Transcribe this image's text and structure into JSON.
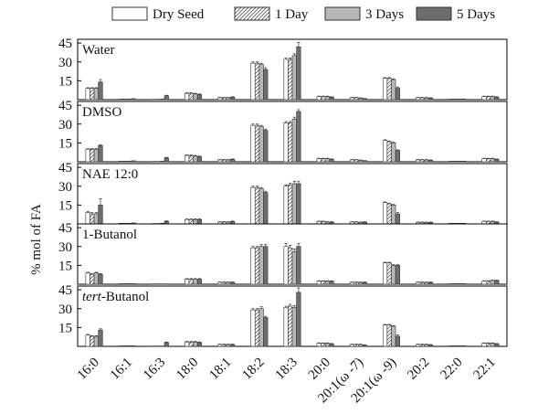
{
  "chart_data": {
    "type": "bar",
    "ylabel": "% mol of FA",
    "yticks": [
      15,
      30,
      45
    ],
    "ylim": [
      0,
      48
    ],
    "categories": [
      "16:0",
      "16:1",
      "16:3",
      "18:0",
      "18:1",
      "18:2",
      "18:3",
      "20:0",
      "20:1(ω -7)",
      "20:1(ω -9)",
      "20:2",
      "22:0",
      "22:1"
    ],
    "legend": [
      {
        "name": "Dry Seed",
        "fill": "#ffffff",
        "hatch": false
      },
      {
        "name": "1 Day",
        "fill": "#ffffff",
        "hatch": true
      },
      {
        "name": "3 Days",
        "fill": "#b8b8b8",
        "hatch": false
      },
      {
        "name": "5 Days",
        "fill": "#6e6e6e",
        "hatch": false
      }
    ],
    "panels": [
      {
        "label": "Water",
        "label_italic": "",
        "values": [
          [
            9,
            9,
            9,
            14
          ],
          [
            0.5,
            0.5,
            0.5,
            0.8
          ],
          [
            0.3,
            0.3,
            0.5,
            3
          ],
          [
            5,
            5,
            4.5,
            4
          ],
          [
            1.5,
            1.5,
            1.5,
            2
          ],
          [
            29,
            29,
            28,
            24
          ],
          [
            32,
            32,
            35,
            42
          ],
          [
            2.5,
            2.5,
            2.5,
            2
          ],
          [
            1.5,
            1.5,
            1.2,
            1
          ],
          [
            17,
            17,
            16,
            9
          ],
          [
            1.5,
            1.5,
            1.5,
            1.2
          ],
          [
            0.5,
            0.5,
            0.5,
            0.5
          ],
          [
            2.5,
            2.5,
            2.5,
            2
          ]
        ],
        "errors": [
          [
            0.5,
            0.5,
            0.5,
            2
          ],
          [
            0.2,
            0.2,
            0.2,
            0.2
          ],
          [
            0.1,
            0.1,
            0.2,
            0.5
          ],
          [
            0.5,
            0.5,
            0.5,
            0.5
          ],
          [
            0.3,
            0.3,
            0.3,
            0.3
          ],
          [
            1,
            1,
            1,
            1.5
          ],
          [
            1,
            1,
            1.5,
            3.5
          ],
          [
            0.3,
            0.3,
            0.3,
            0.3
          ],
          [
            0.3,
            0.3,
            0.3,
            0.2
          ],
          [
            0.5,
            0.5,
            0.5,
            1
          ],
          [
            0.3,
            0.3,
            0.3,
            0.3
          ],
          [
            0.1,
            0.1,
            0.1,
            0.1
          ],
          [
            0.3,
            0.3,
            0.3,
            0.3
          ]
        ]
      },
      {
        "label": "DMSO",
        "label_italic": "",
        "values": [
          [
            10,
            10,
            10,
            13
          ],
          [
            0.5,
            0.5,
            0.5,
            0.8
          ],
          [
            0.3,
            0.3,
            0.5,
            3
          ],
          [
            5,
            5,
            4.5,
            4
          ],
          [
            1.5,
            1.5,
            1.5,
            2
          ],
          [
            29,
            29,
            28,
            25
          ],
          [
            31,
            31,
            34,
            40
          ],
          [
            2.5,
            2.5,
            2.5,
            2
          ],
          [
            1.5,
            1.5,
            1.2,
            1
          ],
          [
            17,
            16,
            15,
            9
          ],
          [
            1.5,
            1.5,
            1.5,
            1.2
          ],
          [
            0.5,
            0.5,
            0.5,
            0.5
          ],
          [
            2.5,
            2.5,
            2.5,
            2
          ]
        ],
        "errors": [
          [
            0.5,
            0.5,
            0.5,
            0.5
          ],
          [
            0.2,
            0.2,
            0.2,
            0.2
          ],
          [
            0.1,
            0.1,
            0.2,
            0.5
          ],
          [
            0.5,
            0.5,
            0.5,
            0.5
          ],
          [
            0.3,
            0.3,
            0.3,
            0.3
          ],
          [
            1,
            1,
            1,
            1
          ],
          [
            1,
            1,
            1.5,
            1.5
          ],
          [
            0.3,
            0.3,
            0.3,
            0.3
          ],
          [
            0.3,
            0.3,
            0.3,
            0.2
          ],
          [
            0.5,
            0.5,
            0.5,
            0.5
          ],
          [
            0.3,
            0.3,
            0.3,
            0.3
          ],
          [
            0.1,
            0.1,
            0.1,
            0.1
          ],
          [
            0.3,
            0.3,
            0.3,
            0.3
          ]
        ]
      },
      {
        "label": "NAE 12:0",
        "label_italic": "",
        "values": [
          [
            9,
            8,
            8,
            15
          ],
          [
            0.5,
            0.5,
            0.5,
            0.8
          ],
          [
            0.3,
            0.3,
            0.5,
            2
          ],
          [
            3.5,
            3.5,
            3.5,
            3.5
          ],
          [
            1.5,
            1.5,
            1.5,
            2
          ],
          [
            29,
            29,
            28,
            25
          ],
          [
            30,
            31,
            32,
            32
          ],
          [
            2,
            2,
            1.5,
            1.5
          ],
          [
            1.5,
            1.5,
            1.2,
            1.5
          ],
          [
            17,
            16,
            15,
            8
          ],
          [
            1.2,
            1.2,
            1.2,
            1.2
          ],
          [
            0.5,
            0.5,
            0.5,
            0.5
          ],
          [
            2,
            2,
            2,
            1.5
          ]
        ],
        "errors": [
          [
            1,
            1,
            1,
            5
          ],
          [
            0.2,
            0.2,
            0.2,
            0.2
          ],
          [
            0.1,
            0.1,
            0.2,
            0.5
          ],
          [
            0.5,
            0.5,
            0.5,
            0.5
          ],
          [
            0.3,
            0.3,
            0.3,
            0.3
          ],
          [
            1,
            1,
            1,
            1
          ],
          [
            1,
            1.5,
            2,
            2
          ],
          [
            0.3,
            0.3,
            0.3,
            0.3
          ],
          [
            0.3,
            0.3,
            0.3,
            0.3
          ],
          [
            0.5,
            0.5,
            0.5,
            1
          ],
          [
            0.3,
            0.3,
            0.3,
            0.3
          ],
          [
            0.1,
            0.1,
            0.1,
            0.1
          ],
          [
            0.3,
            0.3,
            0.3,
            0.3
          ]
        ]
      },
      {
        "label": "1-Butanol",
        "label_italic": "",
        "values": [
          [
            9,
            8,
            9,
            8
          ],
          [
            0.5,
            0.5,
            0.5,
            0.5
          ],
          [
            0.3,
            0.3,
            0.3,
            0.3
          ],
          [
            4,
            4,
            4,
            4
          ],
          [
            1.5,
            1.5,
            1.5,
            1.5
          ],
          [
            29,
            29,
            30,
            30
          ],
          [
            30,
            29,
            26,
            30
          ],
          [
            2.5,
            2.5,
            2.5,
            2.5
          ],
          [
            1.5,
            1.5,
            1.5,
            1.5
          ],
          [
            17,
            17,
            15,
            15
          ],
          [
            1.5,
            1.5,
            1.5,
            1.5
          ],
          [
            0.5,
            0.5,
            0.5,
            0.5
          ],
          [
            2.5,
            2.5,
            3,
            3
          ]
        ],
        "errors": [
          [
            0.5,
            0.5,
            0.5,
            0.5
          ],
          [
            0.1,
            0.1,
            0.1,
            0.1
          ],
          [
            0.1,
            0.1,
            0.1,
            0.1
          ],
          [
            0.5,
            0.5,
            0.5,
            0.5
          ],
          [
            0.3,
            0.3,
            0.3,
            0.3
          ],
          [
            1,
            1,
            1.5,
            1.5
          ],
          [
            2.5,
            2,
            2,
            2.5
          ],
          [
            0.3,
            0.3,
            0.3,
            0.3
          ],
          [
            0.3,
            0.3,
            0.3,
            0.3
          ],
          [
            0.5,
            0.5,
            0.5,
            0.5
          ],
          [
            0.3,
            0.3,
            0.3,
            0.3
          ],
          [
            0.1,
            0.1,
            0.1,
            0.1
          ],
          [
            0.3,
            0.3,
            0.3,
            0.3
          ]
        ]
      },
      {
        "label": "Butanol",
        "label_italic": "tert-",
        "values": [
          [
            9,
            8,
            8,
            13
          ],
          [
            0.5,
            0.5,
            0.5,
            0.5
          ],
          [
            0.3,
            0.3,
            0.3,
            3
          ],
          [
            3.5,
            3.5,
            3.5,
            3
          ],
          [
            1.5,
            1.5,
            1.5,
            1.5
          ],
          [
            29,
            29,
            30,
            23
          ],
          [
            31,
            32,
            31,
            43
          ],
          [
            2.5,
            2.5,
            2.5,
            2
          ],
          [
            1.5,
            1.5,
            1.5,
            1
          ],
          [
            17,
            17,
            16,
            8
          ],
          [
            1.5,
            1.5,
            1.5,
            1.2
          ],
          [
            0.5,
            0.5,
            0.5,
            0.5
          ],
          [
            2.5,
            2.5,
            2.5,
            2
          ]
        ],
        "errors": [
          [
            0.5,
            0.5,
            0.5,
            1
          ],
          [
            0.1,
            0.1,
            0.1,
            0.1
          ],
          [
            0.1,
            0.1,
            0.1,
            0.5
          ],
          [
            0.5,
            0.5,
            0.5,
            0.5
          ],
          [
            0.3,
            0.3,
            0.3,
            0.3
          ],
          [
            1,
            1,
            1.5,
            1
          ],
          [
            1,
            1.5,
            1.5,
            3.5
          ],
          [
            0.3,
            0.3,
            0.3,
            0.3
          ],
          [
            0.3,
            0.3,
            0.3,
            0.3
          ],
          [
            0.5,
            0.5,
            0.5,
            1
          ],
          [
            0.3,
            0.3,
            0.3,
            0.3
          ],
          [
            0.1,
            0.1,
            0.1,
            0.1
          ],
          [
            0.3,
            0.3,
            0.3,
            0.3
          ]
        ]
      }
    ]
  }
}
